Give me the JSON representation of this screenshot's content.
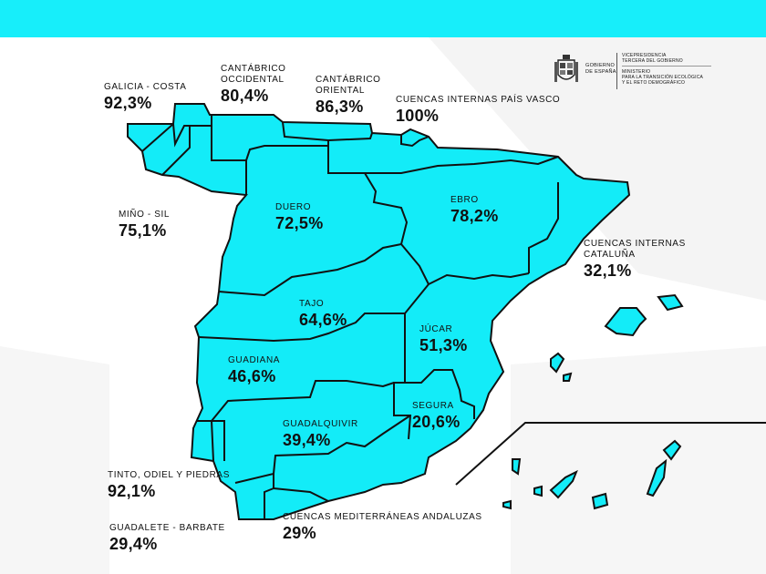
{
  "colors": {
    "accent": "#17eefa",
    "map_fill": "#13ecf8",
    "border": "#111111"
  },
  "logo": {
    "icon": "spain-coat-of-arms-icon",
    "gov_line1": "GOBIERNO",
    "gov_line2": "DE ESPAÑA",
    "vice_line1": "VICEPRESIDENCIA",
    "vice_line2": "TERCERA DEL GOBIERNO",
    "min_line1": "MINISTERIO",
    "min_line2": "PARA LA TRANSICIÓN ECOLÓGICA",
    "min_line3": "Y EL RETO DEMOGRÁFICO"
  },
  "basins": {
    "galicia": {
      "name": "GALICIA - COSTA",
      "value": "92,3%"
    },
    "cant_occ": {
      "name1": "CANTÁBRICO",
      "name2": "OCCIDENTAL",
      "value": "80,4%"
    },
    "cant_ori": {
      "name1": "CANTÁBRICO",
      "name2": "ORIENTAL",
      "value": "86,3%"
    },
    "pais_vasco": {
      "name": "CUENCAS INTERNAS PAÍS VASCO",
      "value": "100%"
    },
    "mino": {
      "name": "MIÑO - SIL",
      "value": "75,1%"
    },
    "duero": {
      "name": "DUERO",
      "value": "72,5%"
    },
    "ebro": {
      "name": "EBRO",
      "value": "78,2%"
    },
    "cataluna": {
      "name1": "CUENCAS INTERNAS",
      "name2": "CATALUÑA",
      "value": "32,1%"
    },
    "tajo": {
      "name": "TAJO",
      "value": "64,6%"
    },
    "jucar": {
      "name": "JÚCAR",
      "value": "51,3%"
    },
    "guadiana": {
      "name": "GUADIANA",
      "value": "46,6%"
    },
    "segura": {
      "name": "SEGURA",
      "value": "20,6%"
    },
    "guadalquivir": {
      "name": "GUADALQUIVIR",
      "value": "39,4%"
    },
    "tinto": {
      "name": "TINTO, ODIEL Y PIEDRAS",
      "value": "92,1%"
    },
    "guadalete": {
      "name": "GUADALETE - BARBATE",
      "value": "29,4%"
    },
    "med_andaluzas": {
      "name": "CUENCAS MEDITERRÁNEAS ANDALUZAS",
      "value": "29%"
    }
  }
}
